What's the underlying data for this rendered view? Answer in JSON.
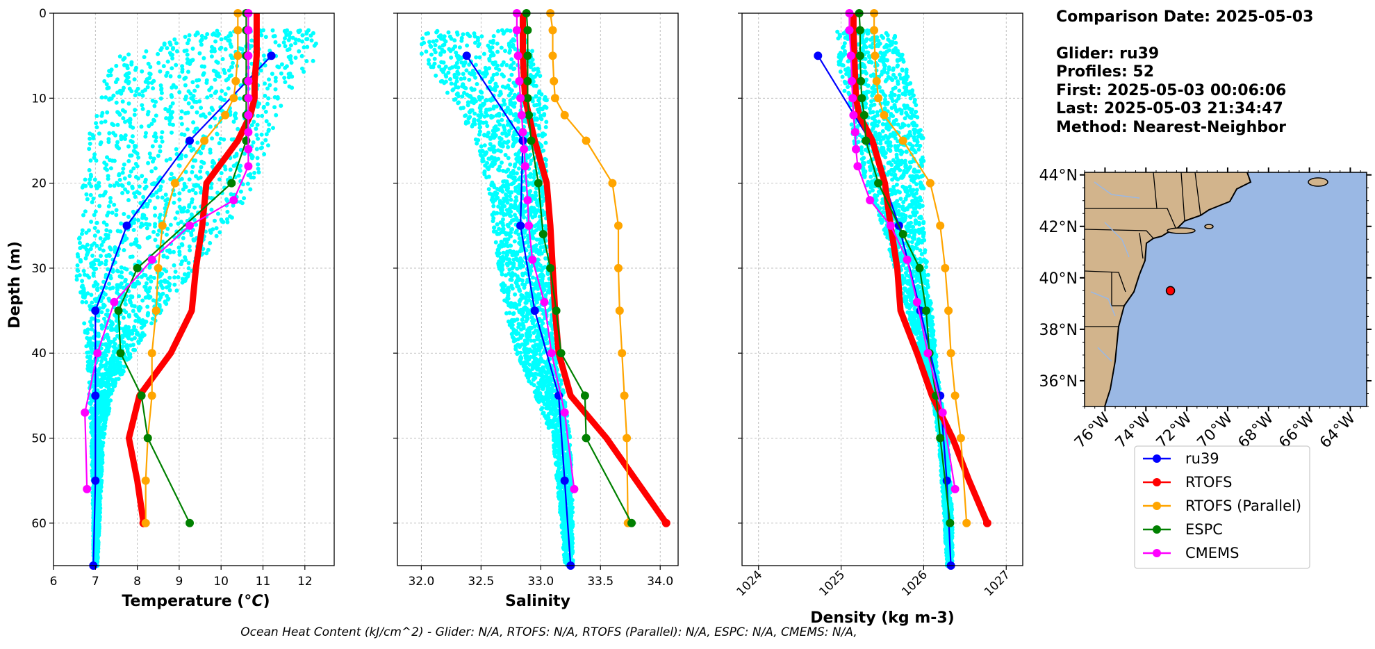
{
  "info": {
    "comparison": "Comparison Date: 2025-05-03",
    "glider": "Glider: ru39",
    "profiles": "Profiles: 52",
    "first": "First: 2025-05-03 00:06:06",
    "last": "Last: 2025-05-03 21:34:47",
    "method": "Method: Nearest-Neighbor"
  },
  "footer": "Ocean Heat Content (kJ/cm^2) - Glider: N/A,  RTOFS: N/A,  RTOFS (Parallel): N/A,  ESPC: N/A,  CMEMS: N/A,",
  "colors": {
    "glider_scatter": "#00ffff",
    "ru39": "#0000ff",
    "RTOFS": "#ff0000",
    "RTOFS (Parallel)": "#ffa500",
    "ESPC": "#008000",
    "CMEMS": "#ff00ff",
    "land": "#d2b48c",
    "ocean": "#9ab8e4"
  },
  "chart_data": [
    {
      "type": "line",
      "name": "temperature",
      "xlabel": "Temperature (°C)",
      "ylabel": "Depth (m)",
      "xlim": [
        6,
        12.7
      ],
      "ylim": [
        65,
        0
      ],
      "xticks": [
        6,
        7,
        8,
        9,
        10,
        11,
        12
      ],
      "yticks": [
        0,
        10,
        20,
        30,
        40,
        50,
        60
      ],
      "grid": true,
      "depths": [
        0,
        2,
        5,
        8,
        10,
        12,
        15,
        20,
        25,
        30,
        35,
        40,
        45,
        50,
        55,
        60,
        65
      ],
      "series": [
        {
          "name": "ru39",
          "depth": [
            5,
            15,
            25,
            35,
            45,
            55,
            65
          ],
          "values": [
            11.2,
            9.25,
            7.75,
            7.0,
            7.0,
            7.0,
            6.95
          ]
        },
        {
          "name": "RTOFS",
          "depth": [
            0,
            2,
            5,
            8,
            10,
            12,
            15,
            20,
            25,
            30,
            35,
            40,
            45,
            50,
            55,
            60
          ],
          "values": [
            10.85,
            10.85,
            10.85,
            10.8,
            10.8,
            10.7,
            10.4,
            9.65,
            9.55,
            9.4,
            9.3,
            8.8,
            8.05,
            7.8,
            8.0,
            8.15
          ]
        },
        {
          "name": "RTOFS (Parallel)",
          "depth": [
            0,
            2,
            5,
            8,
            10,
            12,
            15,
            20,
            25,
            30,
            35,
            40,
            45,
            50,
            55,
            60
          ],
          "values": [
            10.4,
            10.4,
            10.4,
            10.35,
            10.3,
            10.1,
            9.6,
            8.9,
            8.6,
            8.5,
            8.45,
            8.35,
            8.35,
            8.25,
            8.2,
            8.2
          ]
        },
        {
          "name": "ESPC",
          "depth": [
            0,
            2,
            5,
            8,
            10,
            12,
            15,
            20,
            30,
            35,
            40,
            45,
            50,
            60
          ],
          "values": [
            10.6,
            10.6,
            10.6,
            10.6,
            10.6,
            10.6,
            10.6,
            10.25,
            8.0,
            7.55,
            7.6,
            8.1,
            8.25,
            9.25
          ]
        },
        {
          "name": "CMEMS",
          "depth": [
            0,
            2,
            5,
            8,
            10,
            12,
            14,
            16,
            18,
            22,
            25,
            29,
            34,
            40,
            47,
            56
          ],
          "values": [
            10.65,
            10.65,
            10.65,
            10.65,
            10.65,
            10.65,
            10.65,
            10.65,
            10.65,
            10.3,
            9.25,
            8.35,
            7.45,
            7.05,
            6.75,
            6.8
          ]
        }
      ]
    },
    {
      "type": "line",
      "name": "salinity",
      "xlabel": "Salinity",
      "xlim": [
        31.8,
        34.15
      ],
      "ylim": [
        65,
        0
      ],
      "xticks": [
        32.0,
        32.5,
        33.0,
        33.5,
        34.0
      ],
      "grid": true,
      "series": [
        {
          "name": "ru39",
          "depth": [
            5,
            15,
            25,
            35,
            45,
            55,
            65
          ],
          "values": [
            32.38,
            32.85,
            32.83,
            32.95,
            33.15,
            33.2,
            33.25
          ]
        },
        {
          "name": "RTOFS",
          "depth": [
            0,
            2,
            5,
            8,
            10,
            12,
            15,
            20,
            25,
            30,
            35,
            40,
            45,
            50,
            55,
            60
          ],
          "values": [
            32.85,
            32.85,
            32.85,
            32.86,
            32.87,
            32.9,
            32.95,
            33.05,
            33.08,
            33.1,
            33.12,
            33.15,
            33.25,
            33.55,
            33.8,
            34.05
          ]
        },
        {
          "name": "RTOFS (Parallel)",
          "depth": [
            0,
            2,
            5,
            8,
            10,
            12,
            15,
            20,
            25,
            30,
            35,
            40,
            45,
            50,
            60
          ],
          "values": [
            33.08,
            33.1,
            33.1,
            33.11,
            33.12,
            33.2,
            33.38,
            33.6,
            33.65,
            33.65,
            33.66,
            33.68,
            33.7,
            33.72,
            33.73
          ]
        },
        {
          "name": "ESPC",
          "depth": [
            0,
            2,
            5,
            8,
            10,
            12,
            15,
            20,
            26,
            30,
            35,
            40,
            45,
            50,
            60
          ],
          "values": [
            32.88,
            32.89,
            32.89,
            32.89,
            32.89,
            32.9,
            32.92,
            32.98,
            33.02,
            33.08,
            33.13,
            33.17,
            33.37,
            33.38,
            33.76
          ]
        },
        {
          "name": "CMEMS",
          "depth": [
            0,
            2,
            5,
            8,
            10,
            12,
            14,
            16,
            18,
            22,
            25,
            29,
            34,
            40,
            47,
            56
          ],
          "values": [
            32.8,
            32.8,
            32.81,
            32.82,
            32.83,
            32.84,
            32.85,
            32.86,
            32.87,
            32.89,
            32.9,
            32.93,
            33.03,
            33.09,
            33.2,
            33.28
          ]
        }
      ]
    },
    {
      "type": "line",
      "name": "density",
      "xlabel": "Density (kg m-3)",
      "xlim": [
        1023.8,
        1027.2
      ],
      "ylim": [
        65,
        0
      ],
      "xticks": [
        1024,
        1025,
        1026,
        1027
      ],
      "grid": true,
      "series": [
        {
          "name": "ru39",
          "depth": [
            5,
            15,
            25,
            35,
            45,
            55,
            65
          ],
          "values": [
            1024.72,
            1025.35,
            1025.7,
            1025.96,
            1026.2,
            1026.28,
            1026.33
          ]
        },
        {
          "name": "RTOFS",
          "depth": [
            0,
            2,
            5,
            8,
            10,
            12,
            15,
            20,
            25,
            30,
            35,
            40,
            45,
            50,
            55,
            60
          ],
          "values": [
            1025.15,
            1025.15,
            1025.16,
            1025.17,
            1025.18,
            1025.22,
            1025.38,
            1025.53,
            1025.6,
            1025.68,
            1025.72,
            1025.92,
            1026.1,
            1026.35,
            1026.55,
            1026.77
          ]
        },
        {
          "name": "RTOFS (Parallel)",
          "depth": [
            0,
            2,
            5,
            8,
            10,
            12,
            15,
            20,
            25,
            30,
            35,
            40,
            45,
            50,
            60
          ],
          "values": [
            1025.4,
            1025.4,
            1025.41,
            1025.43,
            1025.45,
            1025.52,
            1025.75,
            1026.08,
            1026.2,
            1026.26,
            1026.3,
            1026.33,
            1026.38,
            1026.45,
            1026.52
          ]
        },
        {
          "name": "ESPC",
          "depth": [
            0,
            2,
            5,
            8,
            10,
            12,
            15,
            20,
            26,
            30,
            35,
            40,
            45,
            50,
            60
          ],
          "values": [
            1025.22,
            1025.23,
            1025.23,
            1025.24,
            1025.25,
            1025.28,
            1025.3,
            1025.45,
            1025.75,
            1025.95,
            1026.03,
            1026.07,
            1026.15,
            1026.2,
            1026.32
          ]
        },
        {
          "name": "CMEMS",
          "depth": [
            0,
            2,
            5,
            8,
            10,
            12,
            14,
            16,
            18,
            22,
            25,
            29,
            34,
            40,
            47,
            56
          ],
          "values": [
            1025.1,
            1025.1,
            1025.12,
            1025.13,
            1025.14,
            1025.15,
            1025.17,
            1025.18,
            1025.2,
            1025.35,
            1025.6,
            1025.8,
            1025.92,
            1026.05,
            1026.23,
            1026.38
          ]
        }
      ]
    }
  ],
  "map": {
    "lat_labels": [
      "44°N",
      "42°N",
      "40°N",
      "38°N",
      "36°N"
    ],
    "lat_values": [
      44,
      42,
      40,
      38,
      36
    ],
    "lon_labels": [
      "76°W",
      "74°W",
      "72°W",
      "70°W",
      "68°W",
      "66°W",
      "64°W"
    ],
    "lon_values": [
      -76,
      -74,
      -72,
      -70,
      -68,
      -66,
      -64
    ],
    "lon_range": [
      -77,
      -63.2
    ],
    "lat_range": [
      35,
      44.1
    ],
    "glider_position": {
      "lon": -72.8,
      "lat": 39.5
    }
  },
  "legend": [
    "ru39",
    "RTOFS",
    "RTOFS (Parallel)",
    "ESPC",
    "CMEMS"
  ]
}
